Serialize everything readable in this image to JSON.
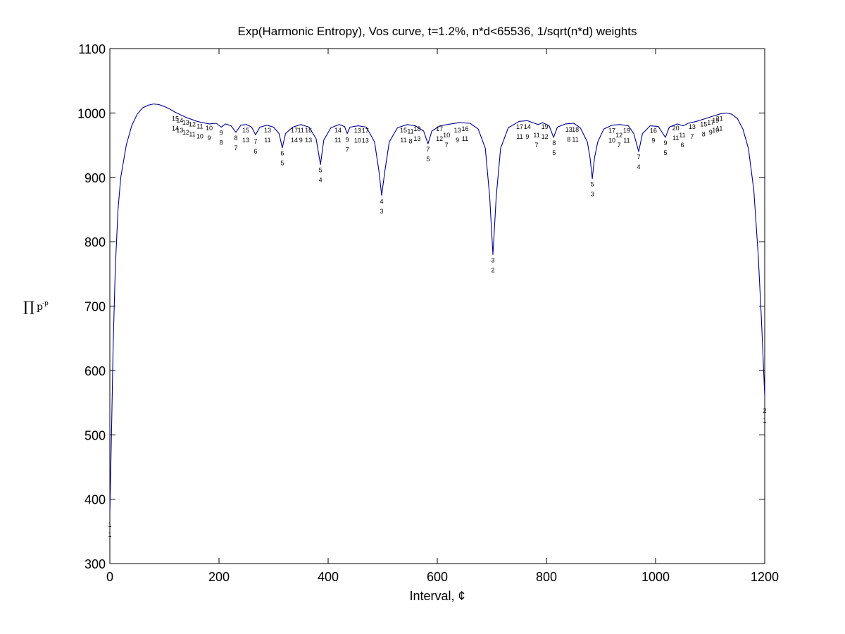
{
  "chart_data": {
    "type": "line",
    "title": "Exp(Harmonic Entropy), Vos curve, t=1.2%, n*d<65536, 1/sqrt(n*d) weights",
    "xlabel": "Interval, ¢",
    "ylabel": {
      "symbol": "∏",
      "base": "p",
      "sup": "-p"
    },
    "xlim": [
      0,
      1200
    ],
    "ylim": [
      300,
      1100
    ],
    "xticks": [
      0,
      200,
      400,
      600,
      800,
      1000,
      1200
    ],
    "yticks": [
      300,
      400,
      500,
      600,
      700,
      800,
      900,
      1000,
      1100
    ],
    "grid": false,
    "line_color": "#00008b",
    "series": [
      {
        "points": [
          [
            0,
            380
          ],
          [
            3,
            500
          ],
          [
            6,
            640
          ],
          [
            10,
            760
          ],
          [
            15,
            850
          ],
          [
            20,
            900
          ],
          [
            30,
            950
          ],
          [
            40,
            980
          ],
          [
            50,
            998
          ],
          [
            60,
            1008
          ],
          [
            70,
            1012
          ],
          [
            80,
            1014
          ],
          [
            90,
            1013
          ],
          [
            100,
            1010
          ],
          [
            110,
            1006
          ],
          [
            120,
            1001
          ],
          [
            130,
            997
          ],
          [
            140,
            993
          ],
          [
            150,
            990
          ],
          [
            160,
            987
          ],
          [
            170,
            985
          ],
          [
            182,
            983
          ],
          [
            195,
            984
          ],
          [
            204,
            978
          ],
          [
            212,
            983
          ],
          [
            222,
            980
          ],
          [
            231,
            970
          ],
          [
            240,
            981
          ],
          [
            250,
            982
          ],
          [
            260,
            978
          ],
          [
            267,
            966
          ],
          [
            275,
            978
          ],
          [
            288,
            981
          ],
          [
            300,
            978
          ],
          [
            310,
            968
          ],
          [
            316,
            946
          ],
          [
            322,
            968
          ],
          [
            335,
            978
          ],
          [
            350,
            982
          ],
          [
            365,
            978
          ],
          [
            378,
            960
          ],
          [
            386,
            920
          ],
          [
            392,
            958
          ],
          [
            405,
            977
          ],
          [
            420,
            982
          ],
          [
            430,
            979
          ],
          [
            435,
            968
          ],
          [
            440,
            978
          ],
          [
            455,
            980
          ],
          [
            470,
            978
          ],
          [
            485,
            955
          ],
          [
            493,
            910
          ],
          [
            498,
            872
          ],
          [
            504,
            910
          ],
          [
            512,
            955
          ],
          [
            527,
            977
          ],
          [
            545,
            982
          ],
          [
            560,
            980
          ],
          [
            575,
            972
          ],
          [
            583,
            952
          ],
          [
            590,
            972
          ],
          [
            605,
            980
          ],
          [
            625,
            983
          ],
          [
            640,
            985
          ],
          [
            660,
            984
          ],
          [
            675,
            975
          ],
          [
            688,
            945
          ],
          [
            696,
            870
          ],
          [
            702,
            780
          ],
          [
            708,
            870
          ],
          [
            716,
            945
          ],
          [
            730,
            977
          ],
          [
            750,
            987
          ],
          [
            765,
            988
          ],
          [
            775,
            985
          ],
          [
            785,
            982
          ],
          [
            793,
            985
          ],
          [
            805,
            980
          ],
          [
            813,
            962
          ],
          [
            820,
            978
          ],
          [
            835,
            983
          ],
          [
            850,
            984
          ],
          [
            862,
            977
          ],
          [
            875,
            955
          ],
          [
            880,
            930
          ],
          [
            884,
            898
          ],
          [
            888,
            930
          ],
          [
            894,
            955
          ],
          [
            905,
            975
          ],
          [
            920,
            981
          ],
          [
            935,
            982
          ],
          [
            950,
            980
          ],
          [
            960,
            968
          ],
          [
            969,
            940
          ],
          [
            976,
            968
          ],
          [
            990,
            980
          ],
          [
            1005,
            979
          ],
          [
            1018,
            962
          ],
          [
            1025,
            978
          ],
          [
            1040,
            983
          ],
          [
            1050,
            980
          ],
          [
            1060,
            984
          ],
          [
            1075,
            987
          ],
          [
            1090,
            991
          ],
          [
            1105,
            995
          ],
          [
            1120,
            999
          ],
          [
            1130,
            1000
          ],
          [
            1140,
            998
          ],
          [
            1150,
            991
          ],
          [
            1160,
            975
          ],
          [
            1170,
            945
          ],
          [
            1180,
            880
          ],
          [
            1188,
            780
          ],
          [
            1194,
            680
          ],
          [
            1197,
            620
          ],
          [
            1200,
            560
          ]
        ]
      }
    ],
    "annotations": [
      {
        "x": 0,
        "num": "1",
        "den": "1",
        "y": 357
      },
      {
        "x": 120,
        "num": "15",
        "den": "14",
        "y": 988
      },
      {
        "x": 128,
        "num": "14",
        "den": "13",
        "y": 985
      },
      {
        "x": 139,
        "num": "13",
        "den": "12",
        "y": 982
      },
      {
        "x": 151,
        "num": "12",
        "den": "11",
        "y": 979
      },
      {
        "x": 165,
        "num": "11",
        "den": "10",
        "y": 976
      },
      {
        "x": 182,
        "num": "10",
        "den": "9",
        "y": 973
      },
      {
        "x": 204,
        "num": "9",
        "den": "8",
        "y": 966
      },
      {
        "x": 231,
        "num": "8",
        "den": "7",
        "y": 958
      },
      {
        "x": 249,
        "num": "15",
        "den": "13",
        "y": 970
      },
      {
        "x": 267,
        "num": "7",
        "den": "6",
        "y": 952
      },
      {
        "x": 289,
        "num": "13",
        "den": "11",
        "y": 970
      },
      {
        "x": 316,
        "num": "6",
        "den": "5",
        "y": 934
      },
      {
        "x": 338,
        "num": "17",
        "den": "14",
        "y": 970
      },
      {
        "x": 350,
        "num": "11",
        "den": "9",
        "y": 970
      },
      {
        "x": 364,
        "num": "16",
        "den": "13",
        "y": 970
      },
      {
        "x": 386,
        "num": "5",
        "den": "4",
        "y": 908
      },
      {
        "x": 418,
        "num": "14",
        "den": "11",
        "y": 970
      },
      {
        "x": 435,
        "num": "9",
        "den": "7",
        "y": 955
      },
      {
        "x": 454,
        "num": "13",
        "den": "10",
        "y": 969
      },
      {
        "x": 468,
        "num": "17",
        "den": "13",
        "y": 969
      },
      {
        "x": 498,
        "num": "4",
        "den": "3",
        "y": 859
      },
      {
        "x": 538,
        "num": "15",
        "den": "11",
        "y": 970
      },
      {
        "x": 551,
        "num": "11",
        "den": "8",
        "y": 968
      },
      {
        "x": 563,
        "num": "18",
        "den": "13",
        "y": 972
      },
      {
        "x": 583,
        "num": "7",
        "den": "5",
        "y": 940
      },
      {
        "x": 604,
        "num": "17",
        "den": "12",
        "y": 972
      },
      {
        "x": 617,
        "num": "10",
        "den": "7",
        "y": 962
      },
      {
        "x": 637,
        "num": "13",
        "den": "9",
        "y": 970
      },
      {
        "x": 651,
        "num": "16",
        "den": "11",
        "y": 972
      },
      {
        "x": 702,
        "num": "3",
        "den": "2",
        "y": 768
      },
      {
        "x": 751,
        "num": "17",
        "den": "11",
        "y": 975
      },
      {
        "x": 765,
        "num": "14",
        "den": "9",
        "y": 975
      },
      {
        "x": 782,
        "num": "11",
        "den": "7",
        "y": 962
      },
      {
        "x": 797,
        "num": "19",
        "den": "12",
        "y": 975
      },
      {
        "x": 814,
        "num": "8",
        "den": "5",
        "y": 950
      },
      {
        "x": 841,
        "num": "13",
        "den": "8",
        "y": 971
      },
      {
        "x": 853,
        "num": "18",
        "den": "11",
        "y": 971
      },
      {
        "x": 884,
        "num": "5",
        "den": "3",
        "y": 886
      },
      {
        "x": 920,
        "num": "17",
        "den": "10",
        "y": 969
      },
      {
        "x": 933,
        "num": "12",
        "den": "7",
        "y": 962
      },
      {
        "x": 947,
        "num": "19",
        "den": "11",
        "y": 969
      },
      {
        "x": 969,
        "num": "7",
        "den": "4",
        "y": 928
      },
      {
        "x": 996,
        "num": "16",
        "den": "9",
        "y": 969
      },
      {
        "x": 1018,
        "num": "9",
        "den": "5",
        "y": 950
      },
      {
        "x": 1037,
        "num": "20",
        "den": "11",
        "y": 973
      },
      {
        "x": 1049,
        "num": "11",
        "den": "6",
        "y": 962
      },
      {
        "x": 1067,
        "num": "13",
        "den": "7",
        "y": 975
      },
      {
        "x": 1088,
        "num": "15",
        "den": "8",
        "y": 979
      },
      {
        "x": 1101,
        "num": "17",
        "den": "9",
        "y": 982
      },
      {
        "x": 1110,
        "num": "19",
        "den": "10",
        "y": 985
      },
      {
        "x": 1117,
        "num": "21",
        "den": "11",
        "y": 988
      },
      {
        "x": 1200,
        "num": "2",
        "den": "1",
        "y": 534
      }
    ]
  }
}
